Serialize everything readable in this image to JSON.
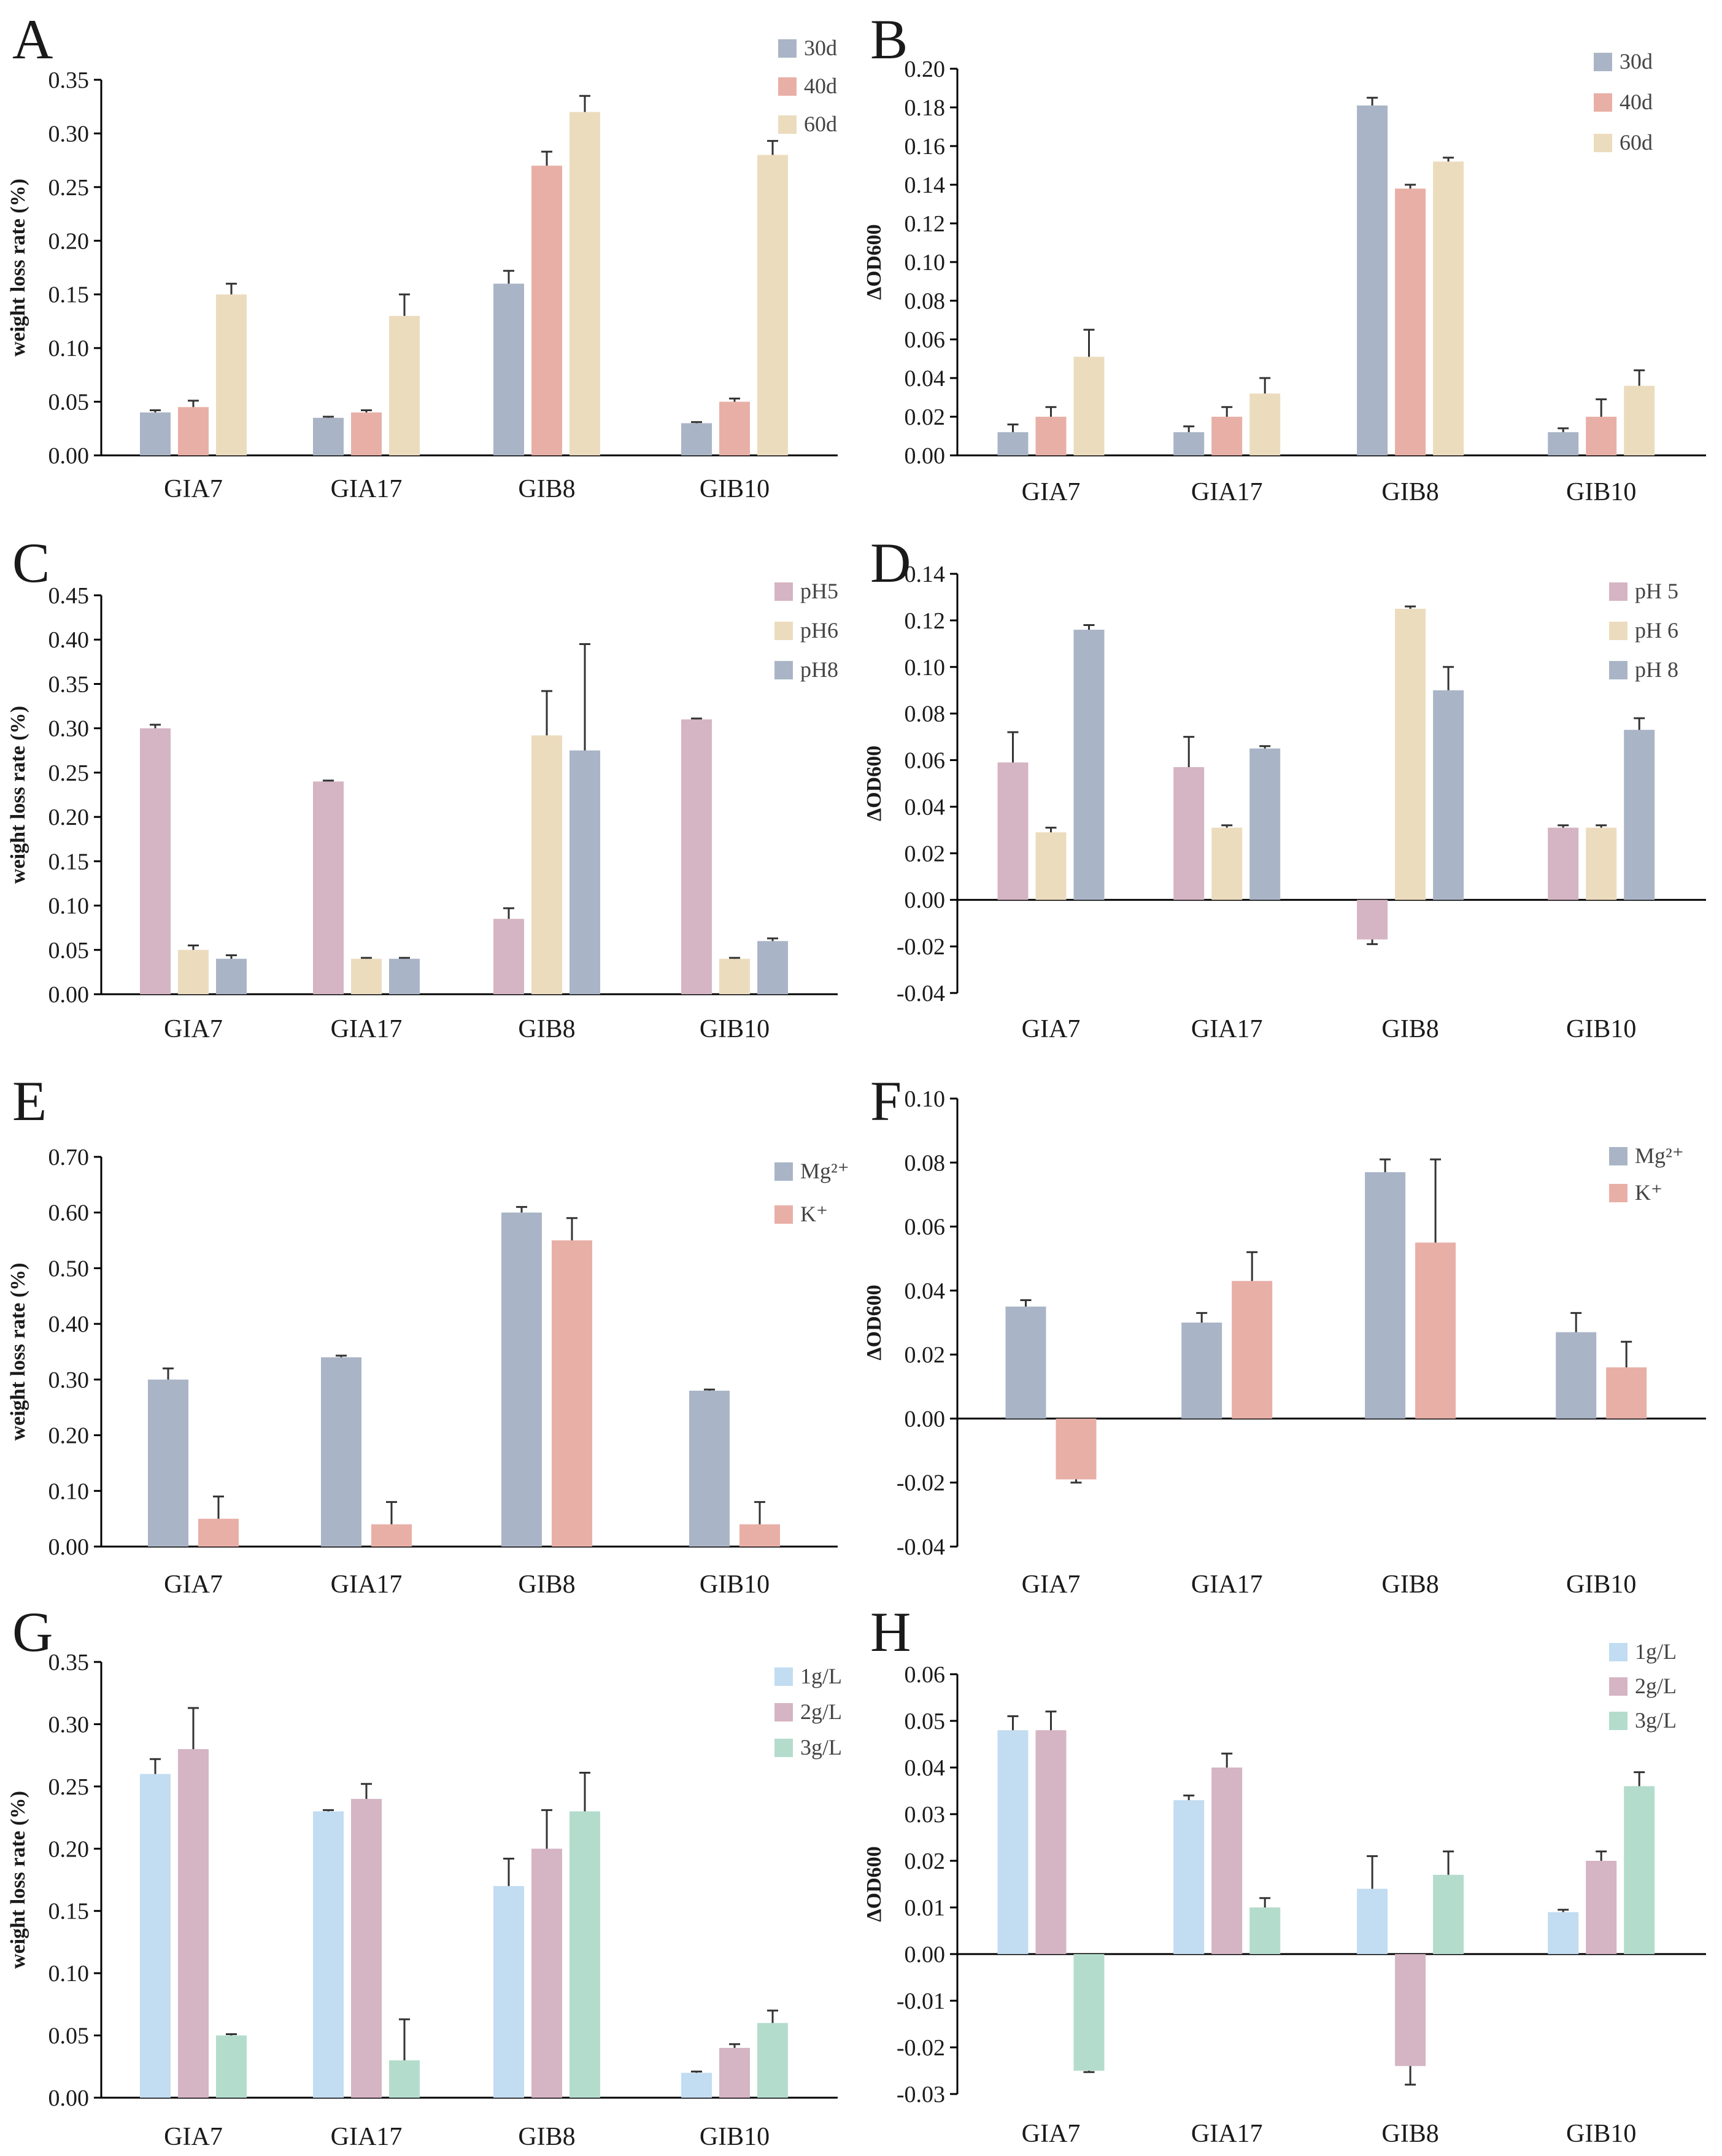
{
  "chart_data": [
    {
      "panel": "A",
      "type": "bar",
      "ylabel": "weight loss rate (%)",
      "categories": [
        "GIA7",
        "GIA17",
        "GIB8",
        "GIB10"
      ],
      "ylim": [
        0,
        0.35
      ],
      "ticks": [
        0,
        0.05,
        0.1,
        0.15,
        0.2,
        0.25,
        0.3,
        0.35
      ],
      "tick_labels": [
        "0.00",
        "0.05",
        "0.10",
        "0.15",
        "0.20",
        "0.25",
        "0.30",
        "0.35"
      ],
      "legend_position": "top-right",
      "series": [
        {
          "name": "30d",
          "color": "#a9b5c6",
          "values": [
            0.04,
            0.035,
            0.16,
            0.03
          ],
          "errors": [
            0.002,
            0.001,
            0.012,
            0.001
          ]
        },
        {
          "name": "40d",
          "color": "#e8afa7",
          "values": [
            0.045,
            0.04,
            0.27,
            0.05
          ],
          "errors": [
            0.006,
            0.002,
            0.013,
            0.003
          ]
        },
        {
          "name": "60d",
          "color": "#ecdcbe",
          "values": [
            0.15,
            0.13,
            0.32,
            0.28
          ],
          "errors": [
            0.01,
            0.02,
            0.015,
            0.013
          ]
        }
      ]
    },
    {
      "panel": "B",
      "type": "bar",
      "ylabel": "ΔOD600",
      "categories": [
        "GIA7",
        "GIA17",
        "GIB8",
        "GIB10"
      ],
      "ylim": [
        0,
        0.2
      ],
      "ticks": [
        0,
        0.02,
        0.04,
        0.06,
        0.08,
        0.1,
        0.12,
        0.14,
        0.16,
        0.18,
        0.2
      ],
      "tick_labels": [
        "0.00",
        "0.02",
        "0.04",
        "0.06",
        "0.08",
        "0.10",
        "0.12",
        "0.14",
        "0.16",
        "0.18",
        "0.20"
      ],
      "legend_position": "top-right",
      "series": [
        {
          "name": "30d",
          "color": "#a9b5c6",
          "values": [
            0.012,
            0.012,
            0.181,
            0.012
          ],
          "errors": [
            0.004,
            0.003,
            0.004,
            0.002
          ]
        },
        {
          "name": "40d",
          "color": "#e8afa7",
          "values": [
            0.02,
            0.02,
            0.138,
            0.02
          ],
          "errors": [
            0.005,
            0.005,
            0.002,
            0.009
          ]
        },
        {
          "name": "60d",
          "color": "#ecdcbe",
          "values": [
            0.051,
            0.032,
            0.152,
            0.036
          ],
          "errors": [
            0.014,
            0.008,
            0.002,
            0.008
          ]
        }
      ]
    },
    {
      "panel": "C",
      "type": "bar",
      "ylabel": "weight loss rate (%)",
      "categories": [
        "GIA7",
        "GIA17",
        "GIB8",
        "GIB10"
      ],
      "ylim": [
        0,
        0.45
      ],
      "ticks": [
        0,
        0.05,
        0.1,
        0.15,
        0.2,
        0.25,
        0.3,
        0.35,
        0.4,
        0.45
      ],
      "tick_labels": [
        "0.00",
        "0.05",
        "0.10",
        "0.15",
        "0.20",
        "0.25",
        "0.30",
        "0.35",
        "0.40",
        "0.45"
      ],
      "legend_position": "top-right",
      "series": [
        {
          "name": "pH5",
          "color": "#d5b4c3",
          "values": [
            0.3,
            0.24,
            0.085,
            0.31
          ],
          "errors": [
            0.004,
            0.001,
            0.012,
            0.001
          ]
        },
        {
          "name": "pH6",
          "color": "#ecdcbe",
          "values": [
            0.05,
            0.04,
            0.292,
            0.04
          ],
          "errors": [
            0.005,
            0.001,
            0.05,
            0.001
          ]
        },
        {
          "name": "pH8",
          "color": "#a9b5c6",
          "values": [
            0.04,
            0.04,
            0.275,
            0.06
          ],
          "errors": [
            0.004,
            0.001,
            0.12,
            0.003
          ]
        }
      ]
    },
    {
      "panel": "D",
      "type": "bar",
      "ylabel": "ΔOD600",
      "categories": [
        "GIA7",
        "GIA17",
        "GIB8",
        "GIB10"
      ],
      "ylim": [
        -0.04,
        0.14
      ],
      "ticks": [
        -0.04,
        -0.02,
        0,
        0.02,
        0.04,
        0.06,
        0.08,
        0.1,
        0.12,
        0.14
      ],
      "tick_labels": [
        "-0.04",
        "-0.02",
        "0.00",
        "0.02",
        "0.04",
        "0.06",
        "0.08",
        "0.10",
        "0.12",
        "0.14"
      ],
      "legend_position": "top-right",
      "series": [
        {
          "name": "pH 5",
          "color": "#d5b4c3",
          "values": [
            0.059,
            0.057,
            -0.017,
            0.031
          ],
          "errors": [
            0.013,
            0.013,
            0.002,
            0.001
          ]
        },
        {
          "name": "pH 6",
          "color": "#ecdcbe",
          "values": [
            0.029,
            0.031,
            0.125,
            0.031
          ],
          "errors": [
            0.002,
            0.001,
            0.001,
            0.001
          ]
        },
        {
          "name": "pH 8",
          "color": "#a9b5c6",
          "values": [
            0.116,
            0.065,
            0.09,
            0.073
          ],
          "errors": [
            0.002,
            0.001,
            0.01,
            0.005
          ]
        }
      ]
    },
    {
      "panel": "E",
      "type": "bar",
      "ylabel": "weight loss rate (%)",
      "categories": [
        "GIA7",
        "GIA17",
        "GIB8",
        "GIB10"
      ],
      "ylim": [
        0,
        0.7
      ],
      "ticks": [
        0,
        0.1,
        0.2,
        0.3,
        0.4,
        0.5,
        0.6,
        0.7
      ],
      "tick_labels": [
        "0.00",
        "0.10",
        "0.20",
        "0.30",
        "0.40",
        "0.50",
        "0.60",
        "0.70"
      ],
      "legend_position": "top-right",
      "series": [
        {
          "name": "Mg²⁺",
          "color": "#a9b5c6",
          "values": [
            0.3,
            0.34,
            0.6,
            0.28
          ],
          "errors": [
            0.02,
            0.003,
            0.01,
            0.002
          ]
        },
        {
          "name": "K⁺",
          "color": "#e8afa7",
          "values": [
            0.05,
            0.04,
            0.55,
            0.04
          ],
          "errors": [
            0.04,
            0.04,
            0.04,
            0.04
          ]
        }
      ]
    },
    {
      "panel": "F",
      "type": "bar",
      "ylabel": "ΔOD600",
      "categories": [
        "GIA7",
        "GIA17",
        "GIB8",
        "GIB10"
      ],
      "ylim": [
        -0.04,
        0.1
      ],
      "ticks": [
        -0.04,
        -0.02,
        0,
        0.02,
        0.04,
        0.06,
        0.08,
        0.1
      ],
      "tick_labels": [
        "-0.04",
        "-0.02",
        "0.00",
        "0.02",
        "0.04",
        "0.06",
        "0.08",
        "0.10"
      ],
      "legend_position": "top-right",
      "series": [
        {
          "name": "Mg²⁺",
          "color": "#a9b5c6",
          "values": [
            0.035,
            0.03,
            0.077,
            0.027
          ],
          "errors": [
            0.002,
            0.003,
            0.004,
            0.006
          ]
        },
        {
          "name": "K⁺",
          "color": "#e8afa7",
          "values": [
            -0.019,
            0.043,
            0.055,
            0.016
          ],
          "errors": [
            0.001,
            0.009,
            0.026,
            0.008
          ]
        }
      ]
    },
    {
      "panel": "G",
      "type": "bar",
      "ylabel": "weight loss rate (%)",
      "categories": [
        "GIA7",
        "GIA17",
        "GIB8",
        "GIB10"
      ],
      "ylim": [
        0,
        0.35
      ],
      "ticks": [
        0,
        0.05,
        0.1,
        0.15,
        0.2,
        0.25,
        0.3,
        0.35
      ],
      "tick_labels": [
        "0.00",
        "0.05",
        "0.10",
        "0.15",
        "0.20",
        "0.25",
        "0.30",
        "0.35"
      ],
      "legend_position": "top-right",
      "series": [
        {
          "name": "1g/L",
          "color": "#c2dcf1",
          "values": [
            0.26,
            0.23,
            0.17,
            0.02
          ],
          "errors": [
            0.012,
            0.001,
            0.022,
            0.001
          ]
        },
        {
          "name": "2g/L",
          "color": "#d5b4c3",
          "values": [
            0.28,
            0.24,
            0.2,
            0.04
          ],
          "errors": [
            0.033,
            0.012,
            0.031,
            0.003
          ]
        },
        {
          "name": "3g/L",
          "color": "#b4dccc",
          "values": [
            0.05,
            0.03,
            0.23,
            0.06
          ],
          "errors": [
            0.001,
            0.033,
            0.031,
            0.01
          ]
        }
      ]
    },
    {
      "panel": "H",
      "type": "bar",
      "ylabel": "ΔOD600",
      "categories": [
        "GIA7",
        "GIA17",
        "GIB8",
        "GIB10"
      ],
      "ylim": [
        -0.03,
        0.06
      ],
      "ticks": [
        -0.03,
        -0.02,
        -0.01,
        0,
        0.01,
        0.02,
        0.03,
        0.04,
        0.05,
        0.06
      ],
      "tick_labels": [
        "-0.03",
        "-0.02",
        "-0.01",
        "0.00",
        "0.01",
        "0.02",
        "0.03",
        "0.04",
        "0.05",
        "0.06"
      ],
      "legend_position": "top-right",
      "series": [
        {
          "name": "1g/L",
          "color": "#c2dcf1",
          "values": [
            0.048,
            0.033,
            0.014,
            0.009
          ],
          "errors": [
            0.003,
            0.001,
            0.007,
            0.0005
          ]
        },
        {
          "name": "2g/L",
          "color": "#d5b4c3",
          "values": [
            0.048,
            0.04,
            -0.024,
            0.02
          ],
          "errors": [
            0.004,
            0.003,
            0.004,
            0.002
          ]
        },
        {
          "name": "3g/L",
          "color": "#b4dccc",
          "values": [
            -0.025,
            0.01,
            0.017,
            0.036
          ],
          "errors": [
            0.0003,
            0.002,
            0.005,
            0.003
          ]
        }
      ]
    }
  ]
}
